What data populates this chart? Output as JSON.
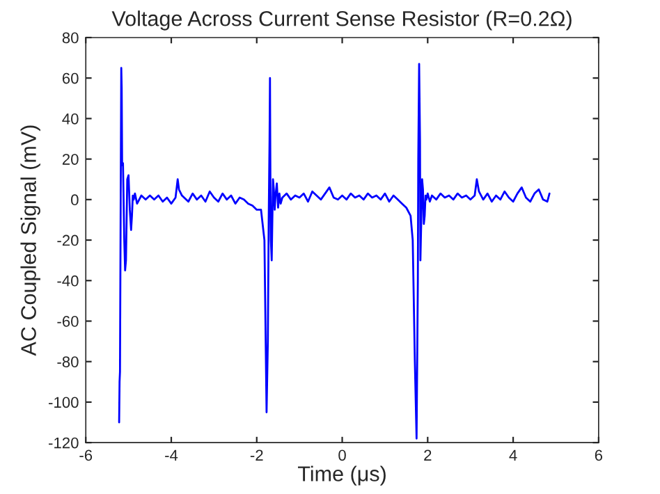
{
  "chart_data": {
    "type": "line",
    "title": "Voltage Across Current Sense Resistor (R=0.2Ω)",
    "xlabel": "Time (μs)",
    "ylabel": "AC Coupled Signal (mV)",
    "xlim": [
      -6,
      6
    ],
    "ylim": [
      -120,
      80
    ],
    "xticks": [
      -6,
      -4,
      -2,
      0,
      2,
      4,
      6
    ],
    "yticks": [
      -120,
      -100,
      -80,
      -60,
      -40,
      -20,
      0,
      20,
      40,
      60,
      80
    ],
    "grid": false,
    "legend": false,
    "marker": "none",
    "line_style": "solid",
    "series": [
      {
        "color": "#0000ff",
        "x": [
          -5.22,
          -5.21,
          -5.2,
          -5.18,
          -5.17,
          -5.16,
          -5.15,
          -5.13,
          -5.1,
          -5.08,
          -5.06,
          -5.03,
          -5.0,
          -4.97,
          -4.94,
          -4.92,
          -4.9,
          -4.88,
          -4.85,
          -4.8,
          -4.7,
          -4.6,
          -4.5,
          -4.4,
          -4.3,
          -4.2,
          -4.1,
          -4.0,
          -3.9,
          -3.85,
          -3.82,
          -3.75,
          -3.6,
          -3.5,
          -3.4,
          -3.3,
          -3.2,
          -3.1,
          -3.0,
          -2.9,
          -2.8,
          -2.7,
          -2.6,
          -2.5,
          -2.4,
          -2.3,
          -2.2,
          -2.1,
          -2.0,
          -1.9,
          -1.82,
          -1.77,
          -1.74,
          -1.72,
          -1.7,
          -1.69,
          -1.68,
          -1.67,
          -1.65,
          -1.62,
          -1.6,
          -1.58,
          -1.56,
          -1.53,
          -1.5,
          -1.47,
          -1.44,
          -1.4,
          -1.3,
          -1.2,
          -1.1,
          -1.0,
          -0.9,
          -0.8,
          -0.7,
          -0.6,
          -0.5,
          -0.4,
          -0.3,
          -0.2,
          -0.1,
          0.0,
          0.1,
          0.2,
          0.3,
          0.4,
          0.5,
          0.6,
          0.7,
          0.8,
          0.9,
          1.0,
          1.1,
          1.2,
          1.3,
          1.4,
          1.5,
          1.6,
          1.65,
          1.7,
          1.74,
          1.77,
          1.78,
          1.8,
          1.82,
          1.83,
          1.85,
          1.87,
          1.89,
          1.91,
          1.93,
          1.95,
          1.97,
          2.0,
          2.05,
          2.1,
          2.2,
          2.3,
          2.4,
          2.5,
          2.6,
          2.7,
          2.8,
          2.9,
          3.0,
          3.1,
          3.15,
          3.2,
          3.3,
          3.4,
          3.5,
          3.6,
          3.7,
          3.8,
          3.9,
          4.0,
          4.1,
          4.2,
          4.3,
          4.4,
          4.5,
          4.6,
          4.7,
          4.8,
          4.85
        ],
        "values": [
          -110,
          -90,
          -85,
          18,
          65,
          55,
          17,
          18,
          -20,
          -35,
          -30,
          10,
          12,
          -5,
          -15,
          -8,
          2,
          0,
          3,
          -2,
          2,
          0,
          2,
          0,
          2,
          -1,
          1,
          -2,
          1,
          10,
          5,
          2,
          -1,
          3,
          0,
          2,
          -1,
          4,
          1,
          -1,
          3,
          0,
          2,
          -2,
          1,
          0,
          -2,
          -3,
          -5,
          -5,
          -20,
          -105,
          -70,
          -10,
          30,
          60,
          10,
          -20,
          -30,
          10,
          5,
          -5,
          2,
          8,
          -4,
          3,
          -2,
          1,
          3,
          0,
          2,
          1,
          3,
          -1,
          4,
          2,
          0,
          3,
          6,
          1,
          0,
          2,
          0,
          3,
          1,
          2,
          0,
          3,
          1,
          2,
          0,
          3,
          -1,
          2,
          0,
          -2,
          -4,
          -8,
          -20,
          -80,
          -118,
          -40,
          20,
          67,
          30,
          -30,
          -10,
          10,
          5,
          -12,
          -8,
          2,
          0,
          3,
          -1,
          2,
          0,
          3,
          1,
          2,
          0,
          3,
          1,
          2,
          0,
          2,
          10,
          4,
          0,
          3,
          -1,
          2,
          0,
          4,
          1,
          -1,
          3,
          6,
          1,
          -1,
          3,
          5,
          0,
          -1,
          3
        ]
      }
    ]
  }
}
